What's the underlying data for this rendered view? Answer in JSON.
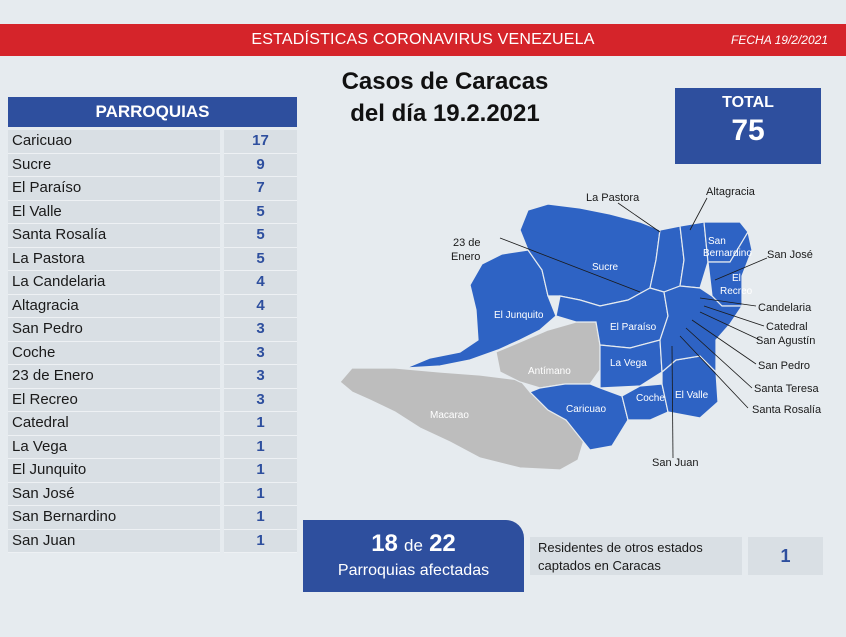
{
  "banner": {
    "title": "ESTADÍSTICAS CORONAVIRUS VENEZUELA",
    "date": "FECHA 19/2/2021"
  },
  "header": {
    "title_line1": "Casos de Caracas",
    "title_line2": "del día 19.2.2021"
  },
  "total": {
    "label": "TOTAL",
    "value": "75"
  },
  "parroquias": {
    "header": "PARROQUIAS",
    "rows": [
      {
        "name": "Caricuao",
        "cases": "17"
      },
      {
        "name": "Sucre",
        "cases": "9"
      },
      {
        "name": "El Paraíso",
        "cases": "7"
      },
      {
        "name": "El Valle",
        "cases": "5"
      },
      {
        "name": "Santa Rosalía",
        "cases": "5"
      },
      {
        "name": "La Pastora",
        "cases": "5"
      },
      {
        "name": "La Candelaria",
        "cases": "4"
      },
      {
        "name": "Altagracia",
        "cases": "4"
      },
      {
        "name": "San Pedro",
        "cases": "3"
      },
      {
        "name": "Coche",
        "cases": "3"
      },
      {
        "name": "23 de Enero",
        "cases": "3"
      },
      {
        "name": "El Recreo",
        "cases": "3"
      },
      {
        "name": "Catedral",
        "cases": "1"
      },
      {
        "name": "La Vega",
        "cases": "1"
      },
      {
        "name": "El Junquito",
        "cases": "1"
      },
      {
        "name": "San José",
        "cases": "1"
      },
      {
        "name": "San Bernardino",
        "cases": "1"
      },
      {
        "name": "San Juan",
        "cases": "1"
      }
    ]
  },
  "afectadas": {
    "count": "18",
    "connector": "de",
    "total": "22",
    "label": "Parroquias afectadas"
  },
  "residentes": {
    "line1": "Residentes de otros estados",
    "line2": "captados en Caracas",
    "value": "1"
  },
  "map": {
    "colors": {
      "affected": "#2e63c4",
      "unaffected": "#bdbdbd",
      "border": "#e6ebef"
    },
    "outside_labels": {
      "la_pastora": "La Pastora",
      "altagracia": "Altagracia",
      "enero_1": "23 de",
      "enero_2": "Enero",
      "san_jose": "San José",
      "candelaria": "Candelaria",
      "catedral": "Catedral",
      "san_agustin": "San Agustín",
      "san_pedro": "San Pedro",
      "santa_teresa": "Santa Teresa",
      "santa_rosalia": "Santa Rosalía",
      "san_juan": "San Juan"
    },
    "inside_labels": {
      "sucre": "Sucre",
      "el_junquito": "El Junquito",
      "el_paraiso": "El Paraíso",
      "la_vega": "La Vega",
      "caricuao": "Caricuao",
      "coche": "Coche",
      "el_valle": "El Valle",
      "san_bernardino_1": "San",
      "san_bernardino_2": "Bernardino",
      "el_recreo_1": "El",
      "el_recreo_2": "Recreo",
      "antimano": "Antímano",
      "macarao": "Macarao"
    }
  }
}
